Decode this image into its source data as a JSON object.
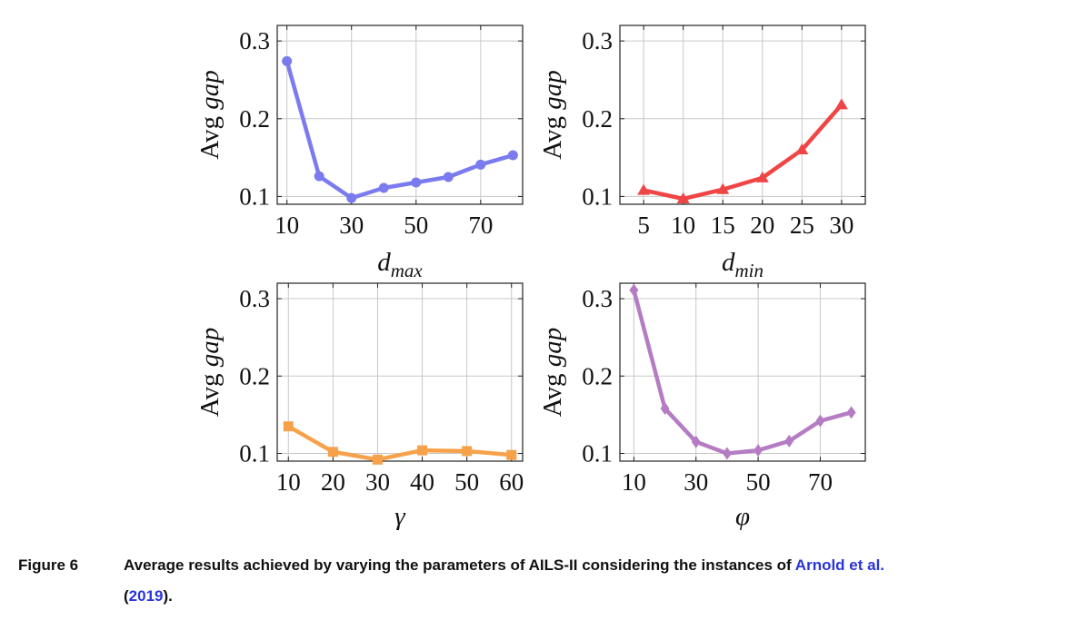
{
  "chart_data": [
    {
      "type": "line",
      "ylabel": "Avg gap",
      "ylabel_parts": [
        "Avg ",
        "gap"
      ],
      "xlabel_base": "d",
      "xlabel_sub": "max",
      "xticks": [
        "10",
        "30",
        "50",
        "70"
      ],
      "xtick_values": [
        10,
        30,
        50,
        70
      ],
      "yticks": [
        "0.1",
        "0.2",
        "0.3"
      ],
      "ytick_values": [
        0.1,
        0.2,
        0.3
      ],
      "xlim": [
        7,
        83
      ],
      "ylim": [
        0.09,
        0.32
      ],
      "grid": true,
      "series": [
        {
          "color": "#7b7bf0",
          "marker": "circle",
          "x": [
            10,
            20,
            30,
            40,
            50,
            60,
            70,
            80
          ],
          "y": [
            0.274,
            0.126,
            0.098,
            0.111,
            0.118,
            0.125,
            0.141,
            0.153
          ]
        }
      ]
    },
    {
      "type": "line",
      "ylabel": "Avg gap",
      "ylabel_parts": [
        "Avg ",
        "gap"
      ],
      "xlabel_base": "d",
      "xlabel_sub": "min",
      "xticks": [
        "5",
        "10",
        "15",
        "20",
        "25",
        "30"
      ],
      "xtick_values": [
        5,
        10,
        15,
        20,
        25,
        30
      ],
      "yticks": [
        "0.1",
        "0.2",
        "0.3"
      ],
      "ytick_values": [
        0.1,
        0.2,
        0.3
      ],
      "xlim": [
        2,
        33
      ],
      "ylim": [
        0.09,
        0.32
      ],
      "grid": true,
      "series": [
        {
          "color": "#f04545",
          "marker": "triangle",
          "x": [
            5,
            10,
            15,
            20,
            25,
            30
          ],
          "y": [
            0.108,
            0.097,
            0.109,
            0.124,
            0.16,
            0.218
          ]
        }
      ]
    },
    {
      "type": "line",
      "ylabel": "Avg gap",
      "ylabel_parts": [
        "Avg ",
        "gap"
      ],
      "xlabel_base": "γ",
      "xlabel_sub": "",
      "xticks": [
        "10",
        "20",
        "30",
        "40",
        "50",
        "60"
      ],
      "xtick_values": [
        10,
        20,
        30,
        40,
        50,
        60
      ],
      "yticks": [
        "0.1",
        "0.2",
        "0.3"
      ],
      "ytick_values": [
        0.1,
        0.2,
        0.3
      ],
      "xlim": [
        7.5,
        62.5
      ],
      "ylim": [
        0.09,
        0.32
      ],
      "grid": true,
      "series": [
        {
          "color": "#f7a24a",
          "marker": "square",
          "x": [
            10,
            20,
            30,
            40,
            50,
            60
          ],
          "y": [
            0.135,
            0.102,
            0.092,
            0.104,
            0.103,
            0.098
          ]
        }
      ]
    },
    {
      "type": "line",
      "ylabel": "Avg gap",
      "ylabel_parts": [
        "Avg ",
        "gap"
      ],
      "xlabel_base": "φ",
      "xlabel_sub": "",
      "xticks": [
        "10",
        "30",
        "50",
        "70"
      ],
      "xtick_values": [
        10,
        30,
        50,
        70
      ],
      "yticks": [
        "0.1",
        "0.2",
        "0.3"
      ],
      "ytick_values": [
        0.1,
        0.2,
        0.3
      ],
      "xlim": [
        5.5,
        84.5
      ],
      "ylim": [
        0.09,
        0.32
      ],
      "grid": true,
      "series": [
        {
          "color": "#b57cc4",
          "marker": "diamond",
          "x": [
            10,
            20,
            30,
            40,
            50,
            60,
            70,
            80
          ],
          "y": [
            0.311,
            0.158,
            0.115,
            0.1,
            0.104,
            0.116,
            0.142,
            0.153
          ]
        }
      ]
    }
  ],
  "caption": {
    "label": "Figure 6",
    "text": "Average results achieved by varying the parameters of AILS-II considering the instances of ",
    "link_authors": "Arnold et al.",
    "open_paren": "(",
    "link_year": "2019",
    "close_paren": ")."
  }
}
